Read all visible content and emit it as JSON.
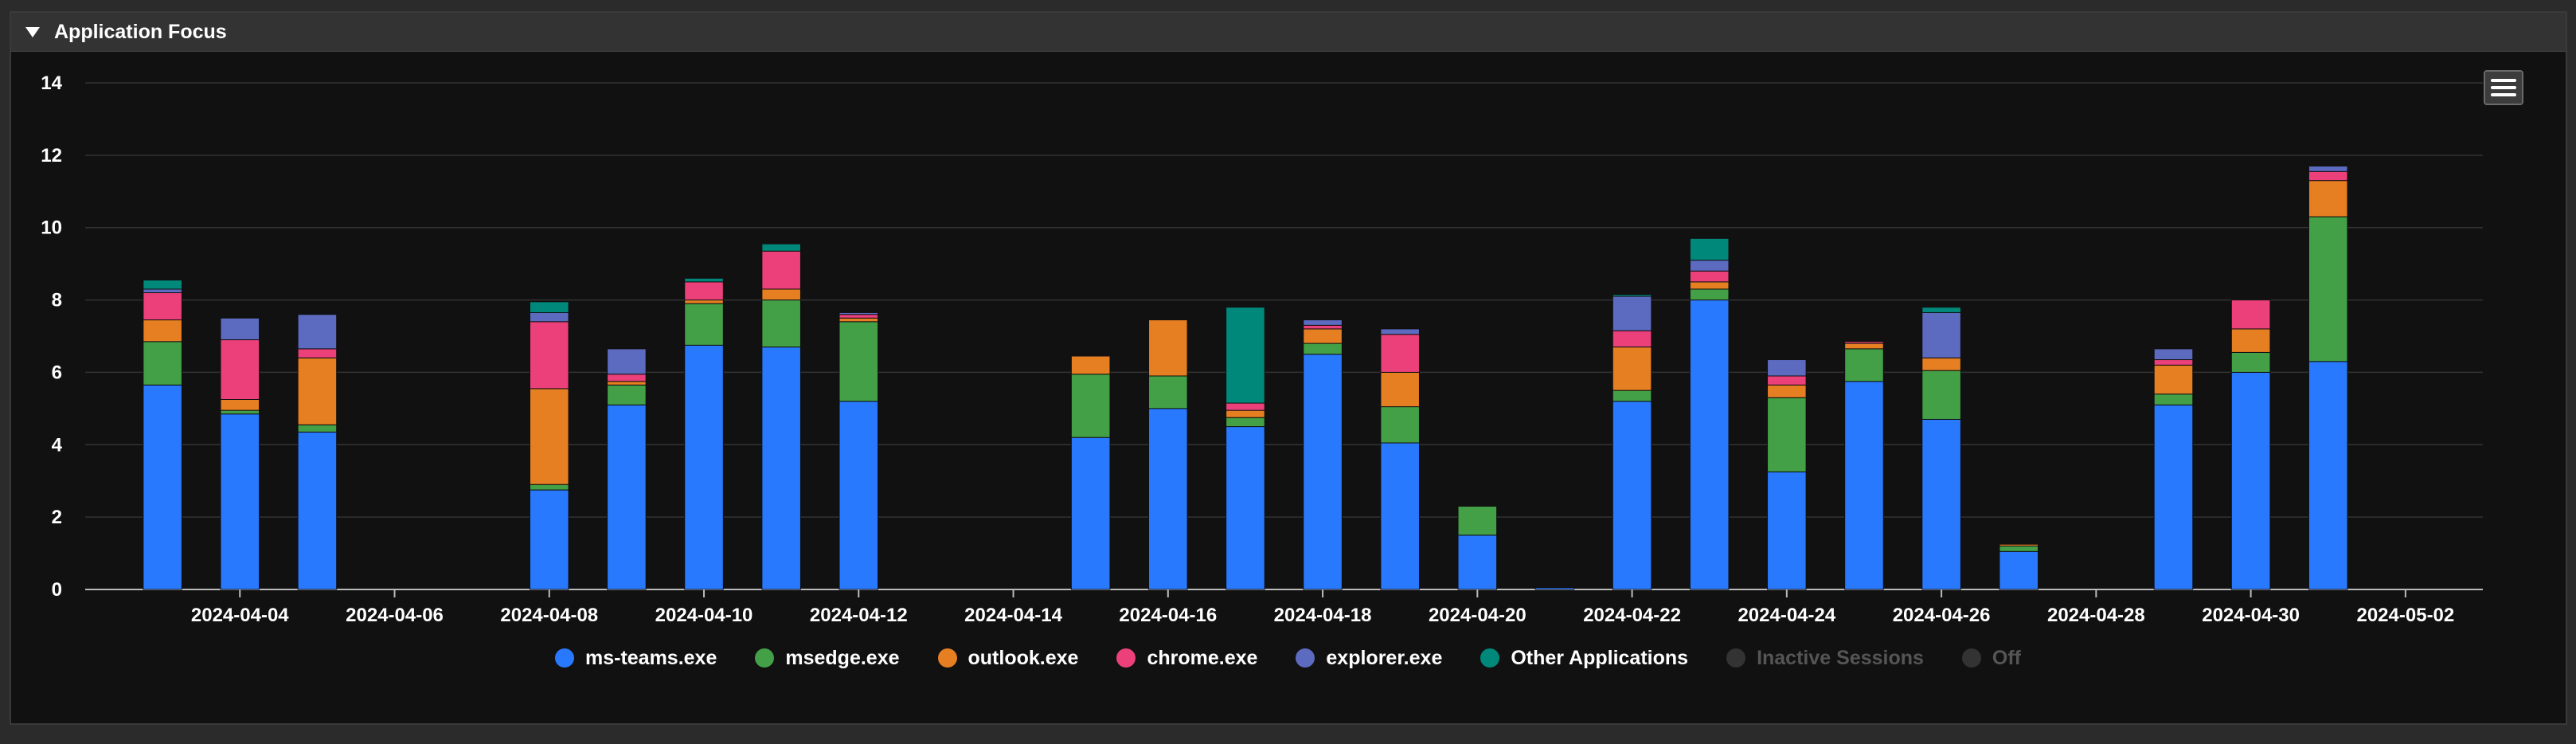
{
  "panel": {
    "title": "Application Focus"
  },
  "chart_data": {
    "type": "bar",
    "stacked": true,
    "x_type": "date",
    "y_ticks": [
      "0",
      "2",
      "4",
      "6",
      "8",
      "10",
      "12",
      "14"
    ],
    "ylim": [
      0,
      14
    ],
    "xlim": [
      "2024-04-02",
      "2024-05-03"
    ],
    "x_ticks": [
      "2024-04-04",
      "2024-04-06",
      "2024-04-08",
      "2024-04-10",
      "2024-04-12",
      "2024-04-14",
      "2024-04-16",
      "2024-04-18",
      "2024-04-20",
      "2024-04-22",
      "2024-04-24",
      "2024-04-26",
      "2024-04-28",
      "2024-04-30",
      "2024-05-02"
    ],
    "grid": true,
    "legend_position": "bottom",
    "dates": [
      "2024-04-03",
      "2024-04-04",
      "2024-04-05",
      "2024-04-08",
      "2024-04-09",
      "2024-04-10",
      "2024-04-11",
      "2024-04-12",
      "2024-04-15",
      "2024-04-16",
      "2024-04-17",
      "2024-04-18",
      "2024-04-19",
      "2024-04-20",
      "2024-04-21",
      "2024-04-22",
      "2024-04-23",
      "2024-04-24",
      "2024-04-25",
      "2024-04-26",
      "2024-04-27",
      "2024-04-29",
      "2024-04-30",
      "2024-05-01"
    ],
    "series": [
      {
        "name": "ms-teams.exe",
        "color": "#2979ff",
        "values": [
          5.65,
          4.85,
          4.35,
          2.75,
          5.1,
          6.75,
          6.7,
          5.2,
          4.2,
          5.0,
          4.5,
          6.5,
          4.05,
          1.5,
          0.05,
          5.2,
          8.0,
          3.25,
          5.75,
          4.7,
          1.05,
          5.1,
          6.0,
          6.3
        ]
      },
      {
        "name": "msedge.exe",
        "color": "#43a047",
        "values": [
          1.2,
          0.1,
          0.2,
          0.15,
          0.55,
          1.15,
          1.3,
          2.2,
          1.75,
          0.9,
          0.25,
          0.3,
          1.0,
          0.8,
          0,
          0.3,
          0.3,
          2.05,
          0.9,
          1.35,
          0.15,
          0.3,
          0.55,
          4.0
        ]
      },
      {
        "name": "outlook.exe",
        "color": "#e67e22",
        "values": [
          0.6,
          0.3,
          1.85,
          2.65,
          0.1,
          0.1,
          0.3,
          0.1,
          0.5,
          1.55,
          0.2,
          0.4,
          0.95,
          0,
          0,
          1.2,
          0.2,
          0.35,
          0.15,
          0.35,
          0.05,
          0.8,
          0.65,
          1.0
        ]
      },
      {
        "name": "chrome.exe",
        "color": "#ec407a",
        "values": [
          0.75,
          1.65,
          0.25,
          1.85,
          0.2,
          0.5,
          1.05,
          0.1,
          0,
          0,
          0.2,
          0.1,
          1.05,
          0,
          0,
          0.45,
          0.3,
          0.25,
          0.05,
          0,
          0,
          0.15,
          0.8,
          0.25
        ]
      },
      {
        "name": "explorer.exe",
        "color": "#5c6bc0",
        "values": [
          0.1,
          0.6,
          0.95,
          0.25,
          0.7,
          0,
          0,
          0.05,
          0,
          0,
          0,
          0.15,
          0.15,
          0,
          0,
          0.95,
          0.3,
          0.45,
          0,
          1.25,
          0,
          0.3,
          0,
          0.15
        ]
      },
      {
        "name": "Other Applications",
        "color": "#00897b",
        "values": [
          0.25,
          0,
          0,
          0.3,
          0,
          0.1,
          0.2,
          0,
          0,
          0,
          2.65,
          0,
          0,
          0,
          0,
          0.05,
          0.6,
          0,
          0,
          0.15,
          0,
          0,
          0,
          0
        ]
      },
      {
        "name": "Inactive Sessions",
        "color": "#333333",
        "hidden": true,
        "values": [
          0,
          0,
          0,
          0,
          0,
          0,
          0,
          0,
          0,
          0,
          0,
          0,
          0,
          0,
          0,
          0,
          0,
          0,
          0,
          0,
          0,
          0,
          0,
          0
        ]
      },
      {
        "name": "Off",
        "color": "#333333",
        "hidden": true,
        "values": [
          0,
          0,
          0,
          0,
          0,
          0,
          0,
          0,
          0,
          0,
          0,
          0,
          0,
          0,
          0,
          0,
          0,
          0,
          0,
          0,
          0,
          0,
          0,
          0
        ]
      }
    ]
  }
}
